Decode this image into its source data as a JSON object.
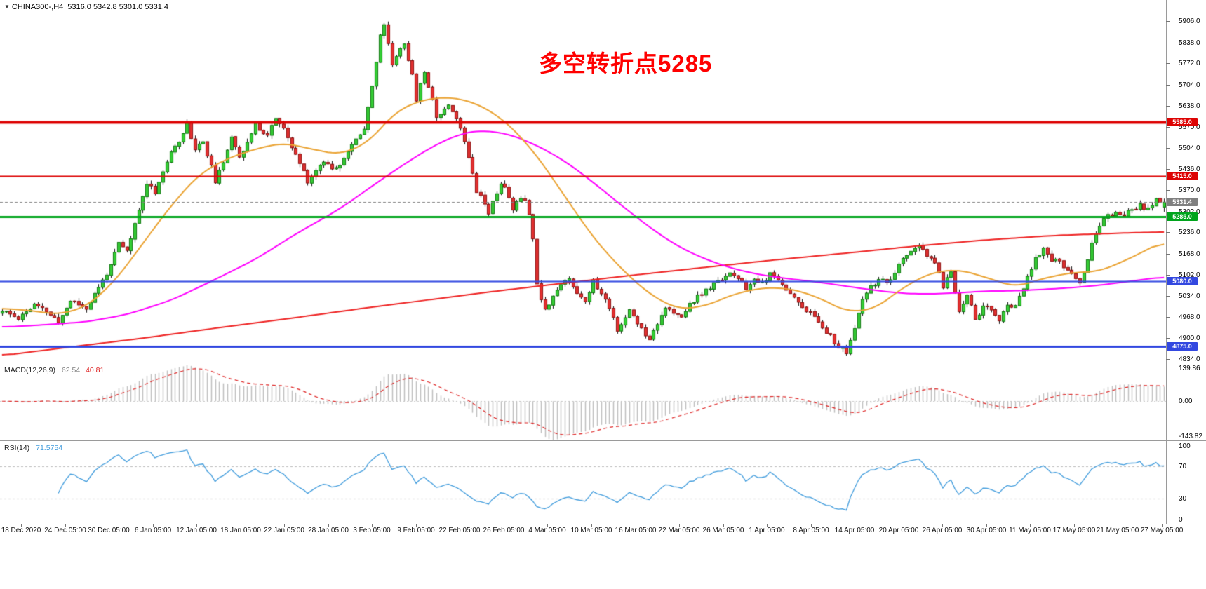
{
  "header": {
    "symbol_timeframe": "CHINA300-,H4",
    "ohlc": "5316.0 5342.8 5301.0 5331.4"
  },
  "annotation": {
    "text": "多空转折点5285",
    "color": "#ff0000"
  },
  "chart_data": {
    "type": "candlestick",
    "title": "CHINA300- H4 candlestick chart with MACD and RSI",
    "y_ticks": [
      "5906.0",
      "5838.0",
      "5772.0",
      "5704.0",
      "5638.0",
      "5570.0",
      "5504.0",
      "5436.0",
      "5370.0",
      "5302.0",
      "5236.0",
      "5168.0",
      "5102.0",
      "5034.0",
      "4968.0",
      "4900.0",
      "4834.0"
    ],
    "x_labels": [
      "18 Dec 2020",
      "24 Dec 05:00",
      "30 Dec 05:00",
      "6 Jan 05:00",
      "12 Jan 05:00",
      "18 Jan 05:00",
      "22 Jan 05:00",
      "28 Jan 05:00",
      "3 Feb 05:00",
      "9 Feb 05:00",
      "22 Feb 05:00",
      "26 Feb 05:00",
      "4 Mar 05:00",
      "10 Mar 05:00",
      "16 Mar 05:00",
      "22 Mar 05:00",
      "26 Mar 05:00",
      "1 Apr 05:00",
      "8 Apr 05:00",
      "14 Apr 05:00",
      "20 Apr 05:00",
      "26 Apr 05:00",
      "30 Apr 05:00",
      "11 May 05:00",
      "17 May 05:00",
      "21 May 05:00",
      "27 May 05:00"
    ],
    "price_scale": {
      "p_top": 5906.0,
      "y_top": 30,
      "p_bot": 4834.0,
      "y_bot": 512
    },
    "hlines": [
      {
        "value": 5585.0,
        "label": "5585.0",
        "color": "#dd0404",
        "width": 4
      },
      {
        "value": 5415.0,
        "label": "5415.0",
        "color": "#dd0404",
        "width": 2
      },
      {
        "value": 5285.0,
        "label": "5285.0",
        "color": "#00a41c",
        "width": 3
      },
      {
        "value": 5080.0,
        "label": "5080.0",
        "color": "#3348e0",
        "width": 2
      },
      {
        "value": 4875.0,
        "label": "4875.0",
        "color": "#3348e0",
        "width": 3
      }
    ],
    "current_price": {
      "value": 5331.4,
      "label": "5331.4",
      "color": "#808080"
    },
    "style": {
      "bull_fill": "#35cd35",
      "bull_border": "#117a11",
      "bear_fill": "#e23030",
      "bear_border": "#8f1111",
      "wick": "#151515"
    },
    "candles": {
      "count": 290,
      "seed": 11,
      "noise_amp": 8,
      "wick_amp": 12,
      "last": {
        "open": 5316.0,
        "high": 5342.8,
        "low": 5301.0,
        "close": 5331.4
      },
      "keyframes": [
        [
          0,
          4985
        ],
        [
          4,
          4965
        ],
        [
          8,
          5005
        ],
        [
          11,
          4985
        ],
        [
          14,
          4950
        ],
        [
          17,
          5020
        ],
        [
          21,
          4995
        ],
        [
          24,
          5060
        ],
        [
          27,
          5130
        ],
        [
          29,
          5200
        ],
        [
          31,
          5175
        ],
        [
          33,
          5260
        ],
        [
          36,
          5395
        ],
        [
          38,
          5365
        ],
        [
          41,
          5460
        ],
        [
          44,
          5530
        ],
        [
          46,
          5580
        ],
        [
          48,
          5500
        ],
        [
          50,
          5525
        ],
        [
          53,
          5400
        ],
        [
          55,
          5450
        ],
        [
          57,
          5545
        ],
        [
          59,
          5478
        ],
        [
          61,
          5520
        ],
        [
          63,
          5575
        ],
        [
          66,
          5545
        ],
        [
          68,
          5600
        ],
        [
          70,
          5560
        ],
        [
          72,
          5505
        ],
        [
          74,
          5455
        ],
        [
          76,
          5400
        ],
        [
          78,
          5430
        ],
        [
          80,
          5465
        ],
        [
          82,
          5440
        ],
        [
          84,
          5455
        ],
        [
          86,
          5490
        ],
        [
          88,
          5530
        ],
        [
          90,
          5570
        ],
        [
          92,
          5700
        ],
        [
          94,
          5855
        ],
        [
          95,
          5900
        ],
        [
          96,
          5830
        ],
        [
          97,
          5770
        ],
        [
          99,
          5820
        ],
        [
          100,
          5840
        ],
        [
          102,
          5730
        ],
        [
          103,
          5660
        ],
        [
          105,
          5745
        ],
        [
          107,
          5660
        ],
        [
          108,
          5600
        ],
        [
          110,
          5630
        ],
        [
          111,
          5645
        ],
        [
          113,
          5600
        ],
        [
          115,
          5525
        ],
        [
          117,
          5430
        ],
        [
          118,
          5370
        ],
        [
          120,
          5330
        ],
        [
          121,
          5300
        ],
        [
          123,
          5360
        ],
        [
          124,
          5395
        ],
        [
          126,
          5350
        ],
        [
          127,
          5310
        ],
        [
          129,
          5345
        ],
        [
          130,
          5340
        ],
        [
          131,
          5300
        ],
        [
          132,
          5210
        ],
        [
          133,
          5080
        ],
        [
          134,
          5030
        ],
        [
          135,
          4990
        ],
        [
          137,
          5035
        ],
        [
          139,
          5070
        ],
        [
          141,
          5090
        ],
        [
          143,
          5045
        ],
        [
          145,
          5020
        ],
        [
          147,
          5080
        ],
        [
          149,
          5040
        ],
        [
          151,
          5000
        ],
        [
          153,
          4930
        ],
        [
          155,
          4960
        ],
        [
          156,
          4990
        ],
        [
          158,
          4950
        ],
        [
          159,
          4930
        ],
        [
          161,
          4900
        ],
        [
          163,
          4950
        ],
        [
          165,
          5000
        ],
        [
          167,
          4975
        ],
        [
          169,
          4965
        ],
        [
          171,
          5010
        ],
        [
          173,
          5030
        ],
        [
          175,
          5050
        ],
        [
          177,
          5070
        ],
        [
          179,
          5090
        ],
        [
          181,
          5110
        ],
        [
          183,
          5085
        ],
        [
          185,
          5060
        ],
        [
          187,
          5080
        ],
        [
          189,
          5075
        ],
        [
          191,
          5100
        ],
        [
          194,
          5075
        ],
        [
          196,
          5040
        ],
        [
          198,
          5015
        ],
        [
          200,
          4990
        ],
        [
          202,
          4965
        ],
        [
          204,
          4940
        ],
        [
          206,
          4905
        ],
        [
          208,
          4870
        ],
        [
          210,
          4855
        ],
        [
          212,
          4930
        ],
        [
          214,
          5020
        ],
        [
          216,
          5060
        ],
        [
          218,
          5090
        ],
        [
          220,
          5070
        ],
        [
          222,
          5105
        ],
        [
          224,
          5150
        ],
        [
          226,
          5180
        ],
        [
          228,
          5190
        ],
        [
          230,
          5160
        ],
        [
          232,
          5140
        ],
        [
          234,
          5065
        ],
        [
          236,
          5110
        ],
        [
          238,
          4985
        ],
        [
          240,
          5040
        ],
        [
          242,
          4960
        ],
        [
          244,
          5000
        ],
        [
          246,
          4990
        ],
        [
          248,
          4955
        ],
        [
          250,
          5000
        ],
        [
          252,
          5010
        ],
        [
          254,
          5060
        ],
        [
          256,
          5120
        ],
        [
          257,
          5160
        ],
        [
          259,
          5180
        ],
        [
          261,
          5150
        ],
        [
          263,
          5140
        ],
        [
          265,
          5110
        ],
        [
          266,
          5100
        ],
        [
          268,
          5080
        ],
        [
          270,
          5150
        ],
        [
          271,
          5200
        ],
        [
          273,
          5260
        ],
        [
          275,
          5285
        ],
        [
          277,
          5300
        ],
        [
          279,
          5290
        ],
        [
          281,
          5305
        ],
        [
          283,
          5320
        ],
        [
          285,
          5310
        ],
        [
          287,
          5340
        ],
        [
          289,
          5331.4
        ]
      ]
    },
    "moving_averages": [
      {
        "name": "slow-ma",
        "color": "#ee2222",
        "width": 2,
        "keyframes": [
          [
            0,
            4845
          ],
          [
            17,
            4872
          ],
          [
            35,
            4900
          ],
          [
            52,
            4930
          ],
          [
            70,
            4960
          ],
          [
            87,
            4990
          ],
          [
            105,
            5020
          ],
          [
            122,
            5048
          ],
          [
            140,
            5075
          ],
          [
            157,
            5100
          ],
          [
            175,
            5125
          ],
          [
            192,
            5148
          ],
          [
            210,
            5170
          ],
          [
            227,
            5192
          ],
          [
            245,
            5212
          ],
          [
            262,
            5226
          ],
          [
            280,
            5234
          ],
          [
            289,
            5237
          ]
        ]
      },
      {
        "name": "medium-ma",
        "color": "#ff00ff",
        "width": 2,
        "keyframes": [
          [
            0,
            4935
          ],
          [
            10,
            4942
          ],
          [
            21,
            4952
          ],
          [
            31,
            4975
          ],
          [
            42,
            5020
          ],
          [
            52,
            5080
          ],
          [
            63,
            5150
          ],
          [
            73,
            5230
          ],
          [
            84,
            5310
          ],
          [
            94,
            5400
          ],
          [
            101,
            5460
          ],
          [
            108,
            5515
          ],
          [
            114,
            5548
          ],
          [
            119,
            5560
          ],
          [
            126,
            5548
          ],
          [
            133,
            5512
          ],
          [
            140,
            5462
          ],
          [
            147,
            5395
          ],
          [
            154,
            5322
          ],
          [
            161,
            5252
          ],
          [
            168,
            5192
          ],
          [
            175,
            5150
          ],
          [
            182,
            5120
          ],
          [
            189,
            5100
          ],
          [
            196,
            5088
          ],
          [
            203,
            5078
          ],
          [
            210,
            5065
          ],
          [
            217,
            5052
          ],
          [
            224,
            5042
          ],
          [
            231,
            5040
          ],
          [
            238,
            5044
          ],
          [
            245,
            5050
          ],
          [
            252,
            5050
          ],
          [
            259,
            5055
          ],
          [
            266,
            5060
          ],
          [
            273,
            5068
          ],
          [
            280,
            5080
          ],
          [
            289,
            5095
          ]
        ]
      },
      {
        "name": "fast-ma",
        "color": "#eaa333",
        "width": 2,
        "keyframes": [
          [
            0,
            4995
          ],
          [
            7,
            4988
          ],
          [
            14,
            4975
          ],
          [
            21,
            5000
          ],
          [
            28,
            5080
          ],
          [
            35,
            5200
          ],
          [
            42,
            5320
          ],
          [
            49,
            5420
          ],
          [
            56,
            5470
          ],
          [
            63,
            5500
          ],
          [
            70,
            5520
          ],
          [
            77,
            5500
          ],
          [
            84,
            5482
          ],
          [
            91,
            5520
          ],
          [
            98,
            5620
          ],
          [
            105,
            5658
          ],
          [
            112,
            5665
          ],
          [
            119,
            5640
          ],
          [
            126,
            5580
          ],
          [
            133,
            5480
          ],
          [
            140,
            5350
          ],
          [
            147,
            5220
          ],
          [
            154,
            5120
          ],
          [
            161,
            5040
          ],
          [
            168,
            4992
          ],
          [
            175,
            5002
          ],
          [
            182,
            5040
          ],
          [
            189,
            5060
          ],
          [
            196,
            5058
          ],
          [
            203,
            5030
          ],
          [
            210,
            4984
          ],
          [
            217,
            4992
          ],
          [
            224,
            5060
          ],
          [
            231,
            5108
          ],
          [
            238,
            5118
          ],
          [
            245,
            5092
          ],
          [
            252,
            5062
          ],
          [
            259,
            5090
          ],
          [
            266,
            5108
          ],
          [
            273,
            5112
          ],
          [
            280,
            5150
          ],
          [
            289,
            5208
          ]
        ]
      }
    ],
    "macd": {
      "label": "MACD(12,26,9)",
      "main_value": "62.54",
      "signal_value": "40.81",
      "fast": 12,
      "slow": 26,
      "signal": 9,
      "ticks": [
        {
          "label": "139.86",
          "value": 139.86
        },
        {
          "label": "0.00",
          "value": 0
        },
        {
          "label": "-143.82",
          "value": -143.82
        }
      ],
      "bar_color": "#bdbdbd",
      "signal_color": "#dd2222"
    },
    "rsi": {
      "label": "RSI(14)",
      "value": "71.5754",
      "period": 14,
      "ticks": [
        {
          "label": "100",
          "value": 100
        },
        {
          "label": "70",
          "value": 70
        },
        {
          "label": "30",
          "value": 30
        },
        {
          "label": "0",
          "value": 0
        }
      ],
      "levels": [
        70,
        30
      ],
      "line_color": "#3f9bdc",
      "level_color": "#bbbbbb"
    }
  }
}
